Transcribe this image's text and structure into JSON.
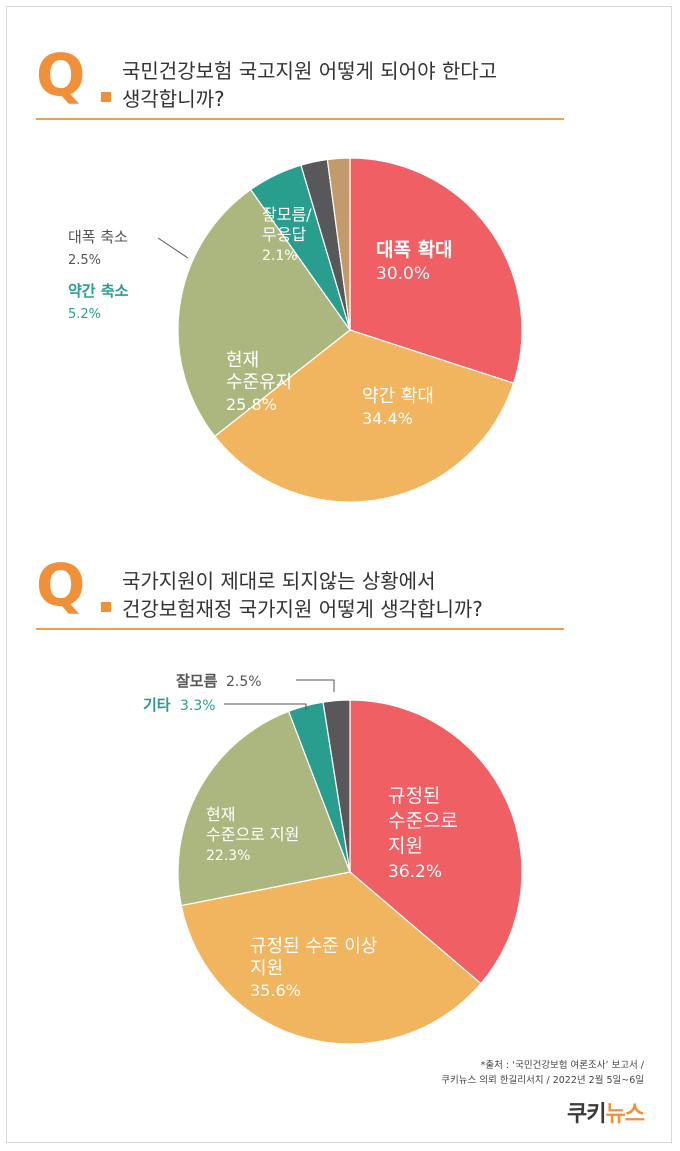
{
  "q1": {
    "mark": "Q",
    "line1": "국민건강보험 국고지원 어떻게 되어야 한다고",
    "line2": "생각합니까?"
  },
  "q2": {
    "mark": "Q",
    "line1": "국가지원이 제대로 되지않는 상황에서",
    "line2": "건강보험재정 국가지원 어떻게 생각합니까?"
  },
  "chart_data": [
    {
      "type": "pie",
      "title": "국민건강보험 국고지원 어떻게 되어야 한다고 생각합니까?",
      "slices": [
        {
          "label": [
            "대폭 확대"
          ],
          "value": 30.0,
          "value_label": "30.0%",
          "color": "#ef5f64",
          "text_color": "#ffffff"
        },
        {
          "label": [
            "약간 확대"
          ],
          "value": 34.4,
          "value_label": "34.4%",
          "color": "#f1b55f",
          "text_color": "#ffffff"
        },
        {
          "label": [
            "현재",
            "수준유지"
          ],
          "value": 25.8,
          "value_label": "25.8%",
          "color": "#acb67f",
          "text_color": "#ffffff"
        },
        {
          "label": [
            "약간 축소"
          ],
          "value": 5.2,
          "value_label": "5.2%",
          "color": "#2a9e8e",
          "text_color": "#2a9e8e"
        },
        {
          "label": [
            "대폭 축소"
          ],
          "value": 2.5,
          "value_label": "2.5%",
          "color": "#58585a",
          "text_color": "#555555"
        },
        {
          "label": [
            "잘모름/",
            "무응답"
          ],
          "value": 2.1,
          "value_label": "2.1%",
          "color": "#c39a6c",
          "text_color": "#ffffff"
        }
      ]
    },
    {
      "type": "pie",
      "title": "국가지원이 제대로 되지않는 상황에서 건강보험재정 국가지원 어떻게 생각합니까?",
      "slices": [
        {
          "label": [
            "규정된",
            "수준으로",
            "지원"
          ],
          "value": 36.2,
          "value_label": "36.2%",
          "color": "#ef5f64",
          "text_color": "#ffffff"
        },
        {
          "label": [
            "규정된 수준 이상",
            "지원"
          ],
          "value": 35.6,
          "value_label": "35.6%",
          "color": "#f1b55f",
          "text_color": "#ffffff"
        },
        {
          "label": [
            "현재",
            "수준으로 지원"
          ],
          "value": 22.3,
          "value_label": "22.3%",
          "color": "#acb67f",
          "text_color": "#ffffff"
        },
        {
          "label": [
            "기타"
          ],
          "value": 3.3,
          "value_label": "3.3%",
          "color": "#2a9e8e",
          "text_color": "#2a9e8e"
        },
        {
          "label": [
            "잘모름"
          ],
          "value": 2.5,
          "value_label": "2.5%",
          "color": "#58585a",
          "text_color": "#555555"
        }
      ]
    }
  ],
  "source": {
    "line1": "*출처 : ‘국민건강보험 여론조사’ 보고서 /",
    "line2": "쿠키뉴스 의뢰 한길리서치 / 2022년 2월 5일~6일"
  },
  "logo": {
    "part1": "쿠키",
    "part2": "뉴스"
  }
}
